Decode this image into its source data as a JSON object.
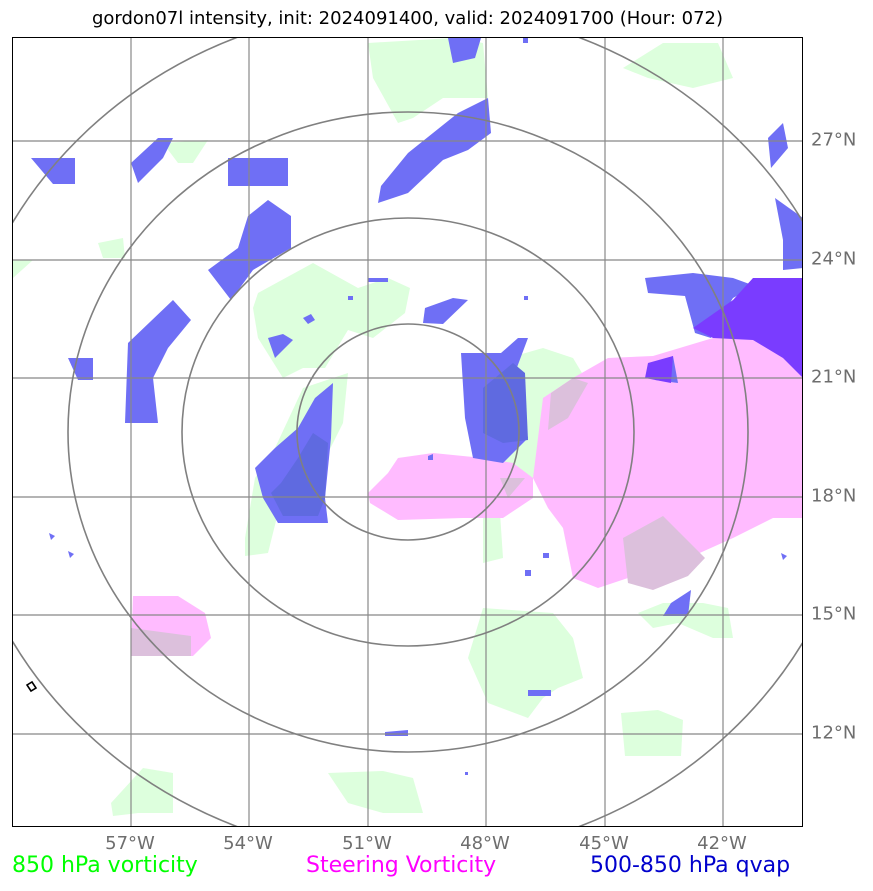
{
  "title": "gordon07l intensity, init: 2024091400, valid: 2024091700 (Hour: 072)",
  "x_ticks": [
    "57°W",
    "54°W",
    "51°W",
    "48°W",
    "45°W",
    "42°W"
  ],
  "y_ticks": [
    "27°N",
    "24°N",
    "21°N",
    "18°N",
    "15°N",
    "12°N"
  ],
  "legend": [
    {
      "label": "850 hPa vorticity",
      "color": "#00ff00"
    },
    {
      "label": "Steering Vorticity",
      "color": "#ff00ff"
    },
    {
      "label": "500-850 hPa qvap",
      "color": "#0000cc"
    }
  ],
  "colors": {
    "vorticity_850_fill": "#ddffdd",
    "steering_vorticity_fill": "#ffbbff",
    "qvap_fill": "#6f6ff5",
    "qvap_dark_fill": "#7a3cff",
    "grid_lines": "#888888",
    "range_rings": "#808080",
    "tick_labels": "#6e6e6e"
  }
}
